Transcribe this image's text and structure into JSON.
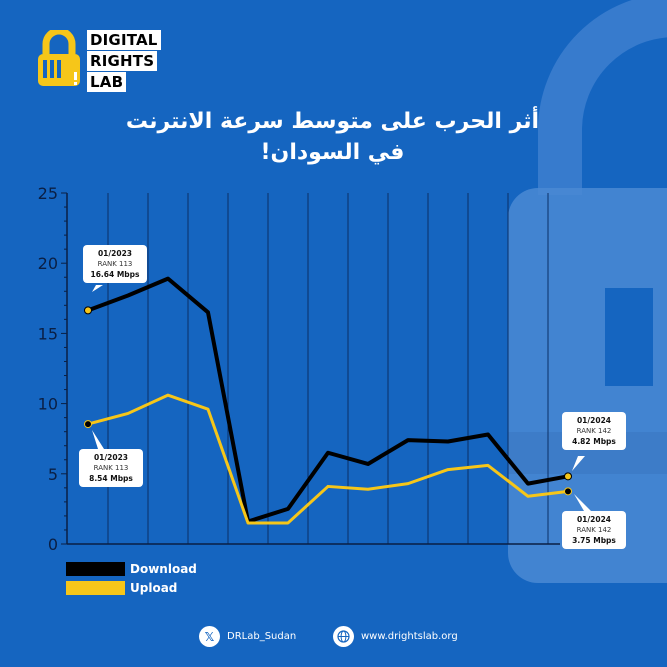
{
  "brand": {
    "lines": [
      "DIGITAL",
      "RIGHTS",
      "LAB"
    ]
  },
  "title_lines": [
    "أثر الحرب على متوسط سرعة الانترنت",
    "في السودان!"
  ],
  "colors": {
    "background": "#1565c0",
    "download": "#000000",
    "upload": "#f6c619",
    "grid": "#0b2f66"
  },
  "chart_data": {
    "type": "line",
    "ylim": [
      0,
      25
    ],
    "yticks": [
      0,
      5,
      10,
      15,
      20,
      25
    ],
    "x": [
      0,
      1,
      2,
      3,
      4,
      5,
      6,
      7,
      8,
      9,
      10,
      11,
      12
    ],
    "grid": "vertical lines",
    "series": [
      {
        "name": "Download",
        "values": [
          16.64,
          17.7,
          18.9,
          16.5,
          1.6,
          2.5,
          6.5,
          5.7,
          7.4,
          7.3,
          7.8,
          4.3,
          4.82
        ]
      },
      {
        "name": "Upload",
        "values": [
          8.54,
          9.3,
          10.6,
          9.6,
          1.5,
          1.5,
          4.1,
          3.9,
          4.3,
          5.3,
          5.6,
          3.4,
          3.75
        ]
      }
    ],
    "annotations": [
      {
        "date": "01/2023",
        "rank": "RANK 113",
        "value": "16.64 Mbps"
      },
      {
        "date": "01/2023",
        "rank": "RANK 113",
        "value": "8.54 Mbps"
      },
      {
        "date": "01/2024",
        "rank": "RANK 142",
        "value": "4.82 Mbps"
      },
      {
        "date": "01/2024",
        "rank": "RANK 142",
        "value": "3.75 Mbps"
      }
    ],
    "legend": {
      "position": "bottom-left"
    }
  },
  "footer": {
    "twitter_handle": "DRLab_Sudan",
    "website": "www.drightslab.org",
    "twitter_icon": "x-logo-icon",
    "web_icon": "globe-icon"
  }
}
